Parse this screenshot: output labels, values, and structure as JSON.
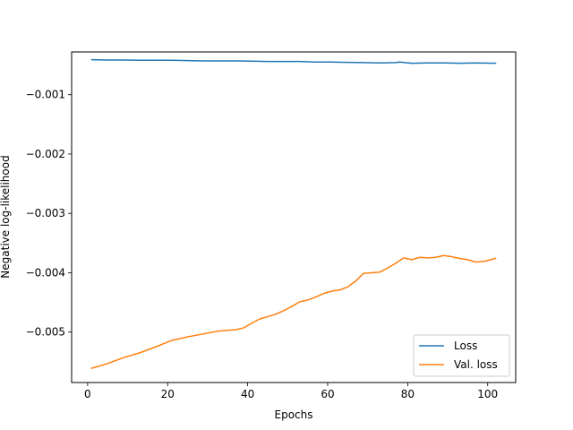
{
  "chart_data": {
    "type": "line",
    "title": "",
    "xlabel": "Epochs",
    "ylabel": "Negative log-likelihood",
    "xlim": [
      -4,
      107
    ],
    "ylim": [
      -0.00585,
      -0.00028
    ],
    "xticks": [
      0,
      20,
      40,
      60,
      80,
      100
    ],
    "xtick_labels": [
      "0",
      "20",
      "40",
      "60",
      "80",
      "100"
    ],
    "yticks": [
      -0.001,
      -0.002,
      -0.003,
      -0.004,
      -0.005
    ],
    "ytick_labels": [
      "−0.001",
      "−0.002",
      "−0.003",
      "−0.004",
      "−0.005"
    ],
    "grid": false,
    "legend_position": "lower-right",
    "series": [
      {
        "name": "Loss",
        "color": "#1f77b4",
        "x": [
          1,
          5,
          9,
          13,
          17,
          21,
          25,
          29,
          33,
          37,
          41,
          45,
          49,
          53,
          57,
          61,
          65,
          69,
          73,
          77,
          78,
          81,
          85,
          89,
          93,
          97,
          102
        ],
        "y": [
          -0.00041,
          -0.000415,
          -0.000415,
          -0.00042,
          -0.00042,
          -0.00042,
          -0.000425,
          -0.00043,
          -0.00043,
          -0.00043,
          -0.000435,
          -0.00044,
          -0.00044,
          -0.00044,
          -0.00045,
          -0.00045,
          -0.000455,
          -0.00046,
          -0.000465,
          -0.00046,
          -0.00045,
          -0.00047,
          -0.000465,
          -0.000465,
          -0.00047,
          -0.000465,
          -0.00047
        ]
      },
      {
        "name": "Val. loss",
        "color": "#ff7f0e",
        "x": [
          1,
          5,
          9,
          13,
          17,
          21,
          25,
          29,
          33,
          37,
          39,
          41,
          43,
          45,
          47,
          49,
          51,
          53,
          55,
          57,
          59,
          61,
          63,
          65,
          67,
          69,
          71,
          73,
          75,
          77,
          79,
          81,
          83,
          85,
          87,
          89,
          91,
          93,
          95,
          97,
          99,
          102
        ],
        "y": [
          -0.00561,
          -0.00553,
          -0.00543,
          -0.00535,
          -0.00525,
          -0.00514,
          -0.00508,
          -0.00503,
          -0.00498,
          -0.00496,
          -0.00493,
          -0.00485,
          -0.00478,
          -0.00474,
          -0.0047,
          -0.00464,
          -0.00457,
          -0.00449,
          -0.00446,
          -0.00441,
          -0.00435,
          -0.00431,
          -0.00429,
          -0.00424,
          -0.00414,
          -0.00401,
          -0.004,
          -0.00399,
          -0.00392,
          -0.00384,
          -0.00375,
          -0.00378,
          -0.00374,
          -0.00375,
          -0.00374,
          -0.00371,
          -0.00373,
          -0.00376,
          -0.00378,
          -0.00382,
          -0.00381,
          -0.00376
        ]
      }
    ]
  }
}
